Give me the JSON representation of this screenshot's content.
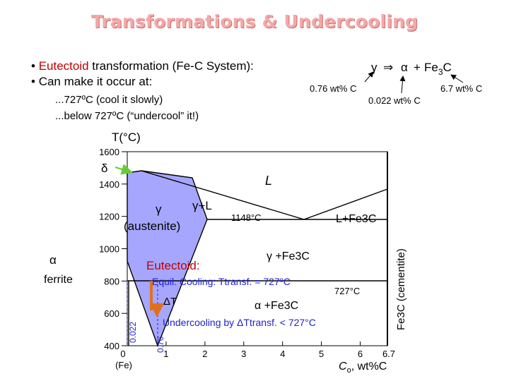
{
  "title": "Transformations & Undercooling",
  "bullets": [
    {
      "symbol": "•",
      "highlight": "Eutectoid",
      "rest": " transformation (Fe-C System):"
    },
    {
      "symbol": "•",
      "text": "Can make it occur at:"
    }
  ],
  "sub_lines": [
    "...727ºC (cool it slowly)",
    "...below 727ºC (“undercool” it!)"
  ],
  "reaction": {
    "gamma": "γ",
    "arrow": "⇒",
    "alpha": "α",
    "plus": "+",
    "fe": "Fe",
    "sub": "3",
    "c": "C",
    "annot_gamma": "0.76 wt% C",
    "annot_fe3c": "6.7 wt% C",
    "annot_alpha": "0.022 wt% C"
  },
  "diagram": {
    "ylabel": "T(°C)",
    "yticks": [
      {
        "v": 1600,
        "label": "1600"
      },
      {
        "v": 1400,
        "label": "1400"
      },
      {
        "v": 1200,
        "label": "1200"
      },
      {
        "v": 1000,
        "label": "1000"
      },
      {
        "v": 800,
        "label": "800"
      },
      {
        "v": 600,
        "label": "600"
      },
      {
        "v": 400,
        "label": "400"
      }
    ],
    "xticks": [
      {
        "v": 0,
        "label": "0"
      },
      {
        "v": 1,
        "label": "1"
      },
      {
        "v": 2,
        "label": "2"
      },
      {
        "v": 3,
        "label": "3"
      },
      {
        "v": 4,
        "label": "4"
      },
      {
        "v": 5,
        "label": "5"
      },
      {
        "v": 6,
        "label": "6"
      },
      {
        "v": 6.7,
        "label": "6.7"
      }
    ],
    "x0_sub": "(Fe)",
    "xlabel_main": "C",
    "xlabel_sub": "o",
    "xlabel_rest": ", wt%C",
    "right_axis": "Fe3C (cementite)",
    "label_0022": "0.022",
    "label_076": "0.76",
    "regions": {
      "delta": "δ",
      "liquid": "L",
      "gamma": "γ",
      "austenite": "(austenite)",
      "gamma_l": "γ+L",
      "l_fe3c": "L+Fe3C",
      "gamma_fe3c": "γ +Fe3C",
      "alpha": "α",
      "ferrite": "ferrite",
      "alpha_fe3c": "α +Fe3C",
      "t_1148": "1148°C",
      "t_727": "727°C"
    },
    "notes": {
      "eutectoid": "Eutectoid:",
      "equil": "Equil. Cooling: Ttransf. = 727ºC",
      "delta_t": "ΔT",
      "undercool": "Undercooling by ΔTtransf. < 727°C"
    },
    "colors": {
      "austenite": "#a6a6ff",
      "undercool_arrow": "#e07020",
      "delta_arrow": "#66cc33",
      "eutectoid_text": "#c00000",
      "note_text": "#2222cc"
    }
  }
}
